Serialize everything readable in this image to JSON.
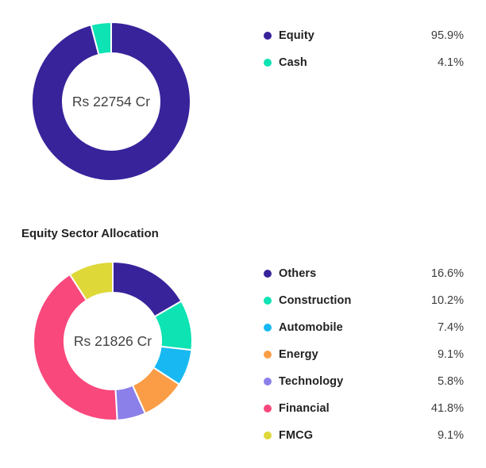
{
  "chart_data": [
    {
      "type": "pie",
      "subtype": "donut",
      "title": "",
      "center_label": "Rs 22754 Cr",
      "legend_position": "right",
      "start_angle_deg": 0,
      "direction": "clockwise",
      "categories": [
        "Equity",
        "Cash"
      ],
      "values": [
        95.9,
        4.1
      ],
      "segments": [
        {
          "label": "Equity",
          "value": 95.9,
          "display": "95.9%",
          "color": "#38239b"
        },
        {
          "label": "Cash",
          "value": 4.1,
          "display": "4.1%",
          "color": "#0de3b3"
        }
      ]
    },
    {
      "type": "pie",
      "subtype": "donut",
      "title": "Equity Sector Allocation",
      "center_label": "Rs 21826 Cr",
      "legend_position": "right",
      "start_angle_deg": 0,
      "direction": "clockwise",
      "categories": [
        "Others",
        "Construction",
        "Automobile",
        "Energy",
        "Technology",
        "Financial",
        "FMCG"
      ],
      "values": [
        16.6,
        10.2,
        7.4,
        9.1,
        5.8,
        41.8,
        9.1
      ],
      "segments": [
        {
          "label": "Others",
          "value": 16.6,
          "display": "16.6%",
          "color": "#38239b"
        },
        {
          "label": "Construction",
          "value": 10.2,
          "display": "10.2%",
          "color": "#0de3b3"
        },
        {
          "label": "Automobile",
          "value": 7.4,
          "display": "7.4%",
          "color": "#18b8f2"
        },
        {
          "label": "Energy",
          "value": 9.1,
          "display": "9.1%",
          "color": "#fa9d46"
        },
        {
          "label": "Technology",
          "value": 5.8,
          "display": "5.8%",
          "color": "#8b80e9"
        },
        {
          "label": "Financial",
          "value": 41.8,
          "display": "41.8%",
          "color": "#f9487c"
        },
        {
          "label": "FMCG",
          "value": 9.1,
          "display": "9.1%",
          "color": "#ded838"
        }
      ]
    }
  ]
}
